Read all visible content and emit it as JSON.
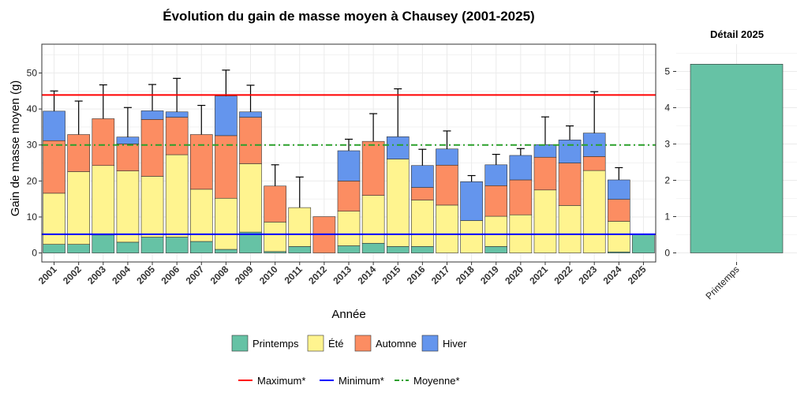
{
  "colors": {
    "Printemps": "#66c2a5",
    "Été": "#fff48f",
    "Automne": "#fc8d62",
    "Hiver": "#6495ed",
    "Maximum": "#ff0000",
    "Minimum": "#0000ff",
    "Moyenne": "#2ca02c"
  },
  "chart_data": [
    {
      "type": "bar",
      "stacked": true,
      "title": "Évolution du gain de masse moyen à Chausey (2001-2025)",
      "xlabel": "Année",
      "ylabel": "Gain de masse moyen (g)",
      "ylim": [
        -2.5,
        58
      ],
      "yticks": [
        0,
        10,
        20,
        30,
        40,
        50
      ],
      "grid": true,
      "categories": [
        "2001",
        "2002",
        "2003",
        "2004",
        "2005",
        "2006",
        "2007",
        "2008",
        "2009",
        "2010",
        "2011",
        "2012",
        "2013",
        "2014",
        "2015",
        "2016",
        "2017",
        "2018",
        "2019",
        "2020",
        "2021",
        "2022",
        "2023",
        "2024",
        "2025"
      ],
      "series": [
        {
          "name": "Printemps",
          "values": [
            2.4,
            2.4,
            5.0,
            3.0,
            4.4,
            4.4,
            3.2,
            1.0,
            5.8,
            0.4,
            1.8,
            0,
            2.0,
            2.7,
            1.8,
            1.8,
            0,
            0,
            1.8,
            0,
            0,
            0,
            0,
            0.3,
            5.2
          ]
        },
        {
          "name": "Été",
          "values": [
            14.2,
            20.2,
            19.3,
            19.8,
            16.9,
            22.9,
            14.5,
            14.2,
            19.0,
            8.2,
            10.8,
            0,
            9.6,
            13.3,
            24.3,
            12.9,
            13.3,
            9.0,
            8.4,
            10.6,
            17.5,
            13.2,
            22.9,
            8.5,
            0
          ]
        },
        {
          "name": "Automne",
          "values": [
            14.6,
            10.3,
            13.0,
            7.5,
            15.8,
            10.4,
            15.2,
            17.4,
            12.9,
            10.0,
            0,
            10.1,
            8.4,
            15.0,
            0,
            3.5,
            11.1,
            0,
            8.5,
            9.7,
            9.1,
            11.8,
            3.9,
            6.1,
            0
          ]
        },
        {
          "name": "Hiver",
          "values": [
            8.2,
            0,
            0,
            1.9,
            2.4,
            1.5,
            0,
            11.0,
            1.5,
            0,
            0,
            0,
            8.4,
            0,
            6.2,
            6.1,
            4.5,
            10.8,
            5.8,
            6.8,
            3.5,
            6.4,
            6.5,
            5.4,
            0
          ]
        }
      ],
      "error_top": [
        45.0,
        42.2,
        46.7,
        40.4,
        46.8,
        48.5,
        41.0,
        50.8,
        46.6,
        24.5,
        21.1,
        null,
        31.6,
        38.7,
        45.6,
        28.8,
        33.9,
        21.5,
        27.4,
        29.0,
        37.8,
        35.3,
        44.8,
        23.7,
        null
      ],
      "reference_lines": [
        {
          "name": "Maximum*",
          "value": 43.9,
          "style": "solid",
          "color": "#ff0000"
        },
        {
          "name": "Minimum*",
          "value": 5.2,
          "style": "solid",
          "color": "#0000ff"
        },
        {
          "name": "Moyenne*",
          "value": 30.0,
          "style": "dashdot",
          "color": "#2ca02c"
        }
      ],
      "legend": {
        "placement": "bottom",
        "fill_entries": [
          "Printemps",
          "Été",
          "Automne",
          "Hiver"
        ],
        "line_entries": [
          "Maximum*",
          "Minimum*",
          "Moyenne*"
        ]
      }
    },
    {
      "type": "bar",
      "title": "Détail 2025",
      "categories": [
        "Printemps"
      ],
      "values": [
        5.2
      ],
      "ylim": [
        -0.25,
        5.75
      ],
      "yticks": [
        0,
        1,
        2,
        3,
        4,
        5
      ],
      "grid": true
    }
  ]
}
